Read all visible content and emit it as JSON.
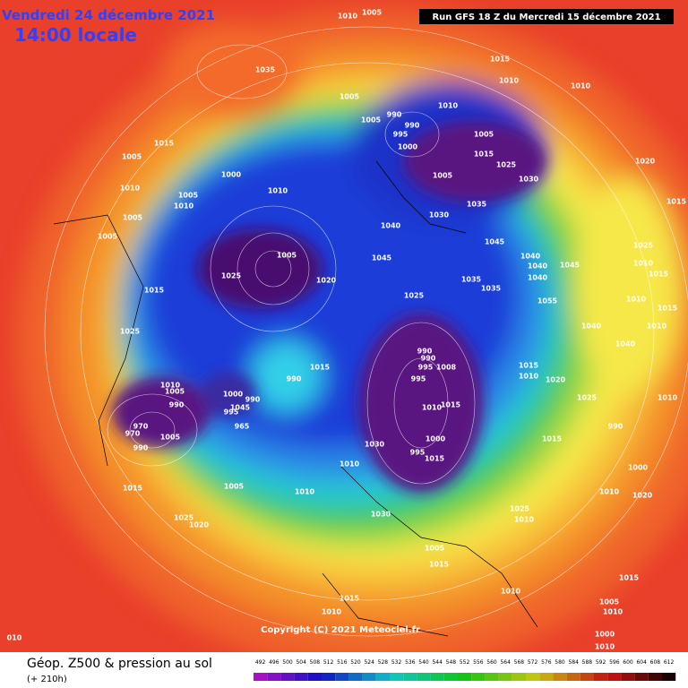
{
  "header": {
    "date": "Vendredi 24 décembre 2021",
    "time": "14:00 locale",
    "run": "Run GFS 18 Z du Mercredi 15 décembre 2021"
  },
  "map": {
    "copyright": "Copyright (C) 2021 Meteociel.fr",
    "pressure_labels": [
      "1010",
      "1005",
      "1035",
      "1015",
      "1010",
      "1010",
      "1005",
      "1010",
      "1005",
      "990",
      "990",
      "995",
      "1000",
      "1005",
      "1015",
      "1025",
      "1030",
      "1005",
      "1035",
      "1030",
      "1015",
      "1005",
      "1010",
      "1000",
      "1010",
      "1005",
      "1010",
      "1005",
      "1005",
      "1040",
      "1045",
      "1020",
      "1015",
      "1005",
      "1045",
      "1025",
      "1015",
      "1020",
      "1025",
      "1040",
      "1040",
      "1045",
      "1025",
      "1010",
      "1015",
      "1035",
      "1035",
      "1040",
      "1055",
      "1010",
      "1015",
      "1025",
      "1040",
      "1010",
      "1040",
      "990",
      "990",
      "995",
      "1008",
      "995",
      "1015",
      "1015",
      "1010",
      "1020",
      "1025",
      "1010",
      "1010",
      "1005",
      "990",
      "1000",
      "990",
      "995",
      "1045",
      "990",
      "965",
      "970",
      "970",
      "990",
      "1005",
      "1010",
      "1015",
      "990",
      "1000",
      "995",
      "1015",
      "1030",
      "1015",
      "1010",
      "1000",
      "1015",
      "1005",
      "1010",
      "1010",
      "1020",
      "1025",
      "1020",
      "1030",
      "1025",
      "1010",
      "1005",
      "1015",
      "1010",
      "1015",
      "1015",
      "1010",
      "1005",
      "1010",
      "1000",
      "1010",
      "010"
    ]
  },
  "legend": {
    "title": "Géop. Z500 & pression au sol",
    "subtitle": "(+ 210h)",
    "scale": [
      492,
      496,
      500,
      504,
      508,
      512,
      516,
      520,
      524,
      528,
      532,
      536,
      540,
      544,
      548,
      552,
      556,
      560,
      564,
      568,
      572,
      576,
      580,
      584,
      588,
      592,
      596,
      600,
      604,
      608,
      612
    ]
  }
}
